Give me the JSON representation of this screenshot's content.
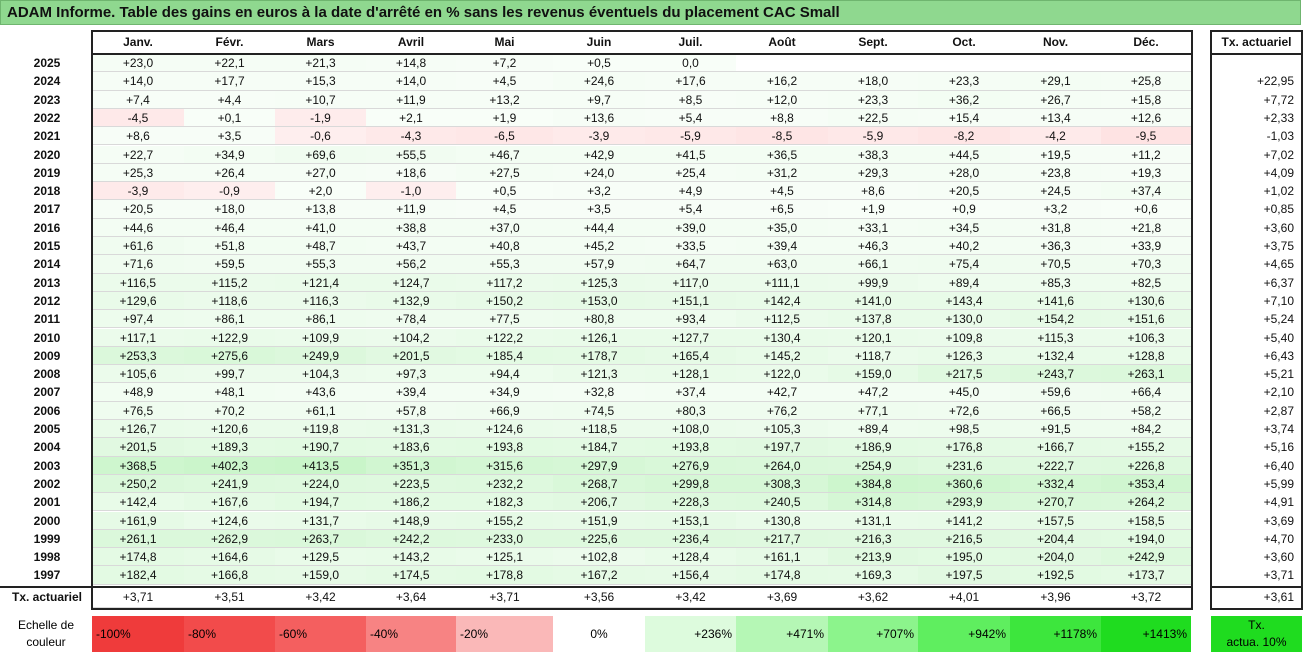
{
  "title": "ADAM Informe. Table des gains en euros à la date d'arrêté en % sans les revenus éventuels du placement CAC Small",
  "months": [
    "Janv.",
    "Févr.",
    "Mars",
    "Avril",
    "Mai",
    "Juin",
    "Juil.",
    "Août",
    "Sept.",
    "Oct.",
    "Nov.",
    "Déc."
  ],
  "tx_header": "Tx. actuariel",
  "rows": [
    {
      "year": "2025",
      "cells": [
        "+23,0",
        "+22,1",
        "+21,3",
        "+14,8",
        "+7,2",
        "+0,5",
        "0,0",
        "",
        "",
        "",
        "",
        ""
      ],
      "tx": ""
    },
    {
      "year": "2024",
      "cells": [
        "+14,0",
        "+17,7",
        "+15,3",
        "+14,0",
        "+4,5",
        "+24,6",
        "+17,6",
        "+16,2",
        "+18,0",
        "+23,3",
        "+29,1",
        "+25,8"
      ],
      "tx": "+22,95"
    },
    {
      "year": "2023",
      "cells": [
        "+7,4",
        "+4,4",
        "+10,7",
        "+11,9",
        "+13,2",
        "+9,7",
        "+8,5",
        "+12,0",
        "+23,3",
        "+36,2",
        "+26,7",
        "+15,8"
      ],
      "tx": "+7,72"
    },
    {
      "year": "2022",
      "cells": [
        "-4,5",
        "+0,1",
        "-1,9",
        "+2,1",
        "+1,9",
        "+13,6",
        "+5,4",
        "+8,8",
        "+22,5",
        "+15,4",
        "+13,4",
        "+12,6"
      ],
      "tx": "+2,33"
    },
    {
      "year": "2021",
      "cells": [
        "+8,6",
        "+3,5",
        "-0,6",
        "-4,3",
        "-6,5",
        "-3,9",
        "-5,9",
        "-8,5",
        "-5,9",
        "-8,2",
        "-4,2",
        "-9,5"
      ],
      "tx": "-1,03"
    },
    {
      "year": "2020",
      "cells": [
        "+22,7",
        "+34,9",
        "+69,6",
        "+55,5",
        "+46,7",
        "+42,9",
        "+41,5",
        "+36,5",
        "+38,3",
        "+44,5",
        "+19,5",
        "+11,2"
      ],
      "tx": "+7,02"
    },
    {
      "year": "2019",
      "cells": [
        "+25,3",
        "+26,4",
        "+27,0",
        "+18,6",
        "+27,5",
        "+24,0",
        "+25,4",
        "+31,2",
        "+29,3",
        "+28,0",
        "+23,8",
        "+19,3"
      ],
      "tx": "+4,09"
    },
    {
      "year": "2018",
      "cells": [
        "-3,9",
        "-0,9",
        "+2,0",
        "-1,0",
        "+0,5",
        "+3,2",
        "+4,9",
        "+4,5",
        "+8,6",
        "+20,5",
        "+24,5",
        "+37,4"
      ],
      "tx": "+1,02"
    },
    {
      "year": "2017",
      "cells": [
        "+20,5",
        "+18,0",
        "+13,8",
        "+11,9",
        "+4,5",
        "+3,5",
        "+5,4",
        "+6,5",
        "+1,9",
        "+0,9",
        "+3,2",
        "+0,6"
      ],
      "tx": "+0,85"
    },
    {
      "year": "2016",
      "cells": [
        "+44,6",
        "+46,4",
        "+41,0",
        "+38,8",
        "+37,0",
        "+44,4",
        "+39,0",
        "+35,0",
        "+33,1",
        "+34,5",
        "+31,8",
        "+21,8"
      ],
      "tx": "+3,60"
    },
    {
      "year": "2015",
      "cells": [
        "+61,6",
        "+51,8",
        "+48,7",
        "+43,7",
        "+40,8",
        "+45,2",
        "+33,5",
        "+39,4",
        "+46,3",
        "+40,2",
        "+36,3",
        "+33,9"
      ],
      "tx": "+3,75"
    },
    {
      "year": "2014",
      "cells": [
        "+71,6",
        "+59,5",
        "+55,3",
        "+56,2",
        "+55,3",
        "+57,9",
        "+64,7",
        "+63,0",
        "+66,1",
        "+75,4",
        "+70,5",
        "+70,3"
      ],
      "tx": "+4,65"
    },
    {
      "year": "2013",
      "cells": [
        "+116,5",
        "+115,2",
        "+121,4",
        "+124,7",
        "+117,2",
        "+125,3",
        "+117,0",
        "+111,1",
        "+99,9",
        "+89,4",
        "+85,3",
        "+82,5"
      ],
      "tx": "+6,37"
    },
    {
      "year": "2012",
      "cells": [
        "+129,6",
        "+118,6",
        "+116,3",
        "+132,9",
        "+150,2",
        "+153,0",
        "+151,1",
        "+142,4",
        "+141,0",
        "+143,4",
        "+141,6",
        "+130,6"
      ],
      "tx": "+7,10"
    },
    {
      "year": "2011",
      "cells": [
        "+97,4",
        "+86,1",
        "+86,1",
        "+78,4",
        "+77,5",
        "+80,8",
        "+93,4",
        "+112,5",
        "+137,8",
        "+130,0",
        "+154,2",
        "+151,6"
      ],
      "tx": "+5,24"
    },
    {
      "year": "2010",
      "cells": [
        "+117,1",
        "+122,9",
        "+109,9",
        "+104,2",
        "+122,2",
        "+126,1",
        "+127,7",
        "+130,4",
        "+120,1",
        "+109,8",
        "+115,3",
        "+106,3"
      ],
      "tx": "+5,40"
    },
    {
      "year": "2009",
      "cells": [
        "+253,3",
        "+275,6",
        "+249,9",
        "+201,5",
        "+185,4",
        "+178,7",
        "+165,4",
        "+145,2",
        "+118,7",
        "+126,3",
        "+132,4",
        "+128,8"
      ],
      "tx": "+6,43"
    },
    {
      "year": "2008",
      "cells": [
        "+105,6",
        "+99,7",
        "+104,3",
        "+97,3",
        "+94,4",
        "+121,3",
        "+128,1",
        "+122,0",
        "+159,0",
        "+217,5",
        "+243,7",
        "+263,1"
      ],
      "tx": "+5,21"
    },
    {
      "year": "2007",
      "cells": [
        "+48,9",
        "+48,1",
        "+43,6",
        "+39,4",
        "+34,9",
        "+32,8",
        "+37,4",
        "+42,7",
        "+47,2",
        "+45,0",
        "+59,6",
        "+66,4"
      ],
      "tx": "+2,10"
    },
    {
      "year": "2006",
      "cells": [
        "+76,5",
        "+70,2",
        "+61,1",
        "+57,8",
        "+66,9",
        "+74,5",
        "+80,3",
        "+76,2",
        "+77,1",
        "+72,6",
        "+66,5",
        "+58,2"
      ],
      "tx": "+2,87"
    },
    {
      "year": "2005",
      "cells": [
        "+126,7",
        "+120,6",
        "+119,8",
        "+131,3",
        "+124,6",
        "+118,5",
        "+108,0",
        "+105,3",
        "+89,4",
        "+98,5",
        "+91,5",
        "+84,2"
      ],
      "tx": "+3,74"
    },
    {
      "year": "2004",
      "cells": [
        "+201,5",
        "+189,3",
        "+190,7",
        "+183,6",
        "+193,8",
        "+184,7",
        "+193,8",
        "+197,7",
        "+186,9",
        "+176,8",
        "+166,7",
        "+155,2"
      ],
      "tx": "+5,16"
    },
    {
      "year": "2003",
      "cells": [
        "+368,5",
        "+402,3",
        "+413,5",
        "+351,3",
        "+315,6",
        "+297,9",
        "+276,9",
        "+264,0",
        "+254,9",
        "+231,6",
        "+222,7",
        "+226,8"
      ],
      "tx": "+6,40"
    },
    {
      "year": "2002",
      "cells": [
        "+250,2",
        "+241,9",
        "+224,0",
        "+223,5",
        "+232,2",
        "+268,7",
        "+299,8",
        "+308,3",
        "+384,8",
        "+360,6",
        "+332,4",
        "+353,4"
      ],
      "tx": "+5,99"
    },
    {
      "year": "2001",
      "cells": [
        "+142,4",
        "+167,6",
        "+194,7",
        "+186,2",
        "+182,3",
        "+206,7",
        "+228,3",
        "+240,5",
        "+314,8",
        "+293,9",
        "+270,7",
        "+264,2"
      ],
      "tx": "+4,91"
    },
    {
      "year": "2000",
      "cells": [
        "+161,9",
        "+124,6",
        "+131,7",
        "+148,9",
        "+155,2",
        "+151,9",
        "+153,1",
        "+130,8",
        "+131,1",
        "+141,2",
        "+157,5",
        "+158,5"
      ],
      "tx": "+3,69"
    },
    {
      "year": "1999",
      "cells": [
        "+261,1",
        "+262,9",
        "+263,7",
        "+242,2",
        "+233,0",
        "+225,6",
        "+236,4",
        "+217,7",
        "+216,3",
        "+216,5",
        "+204,4",
        "+194,0"
      ],
      "tx": "+4,70"
    },
    {
      "year": "1998",
      "cells": [
        "+174,8",
        "+164,6",
        "+129,5",
        "+143,2",
        "+125,1",
        "+102,8",
        "+128,4",
        "+161,1",
        "+213,9",
        "+195,0",
        "+204,0",
        "+242,9"
      ],
      "tx": "+3,60"
    },
    {
      "year": "1997",
      "cells": [
        "+182,4",
        "+166,8",
        "+159,0",
        "+174,5",
        "+178,8",
        "+167,2",
        "+156,4",
        "+174,8",
        "+169,3",
        "+197,5",
        "+192,5",
        "+173,7"
      ],
      "tx": "+3,71"
    }
  ],
  "footer": {
    "label": "Tx. actuariel",
    "cells": [
      "+3,71",
      "+3,51",
      "+3,42",
      "+3,64",
      "+3,71",
      "+3,56",
      "+3,42",
      "+3,69",
      "+3,62",
      "+4,01",
      "+3,96",
      "+3,72"
    ],
    "tx": "+3,61"
  },
  "scale": {
    "label_line1": "Echelle de",
    "label_line2": "couleur",
    "items": [
      {
        "text": "-100%",
        "color": "#ef3b3b",
        "align": "left"
      },
      {
        "text": "-80%",
        "color": "#f24b4b",
        "align": "left"
      },
      {
        "text": "-60%",
        "color": "#f45f5f",
        "align": "left"
      },
      {
        "text": "-40%",
        "color": "#f78383",
        "align": "left"
      },
      {
        "text": "-20%",
        "color": "#fab8b8",
        "align": "left"
      },
      {
        "text": "0%",
        "color": "#ffffff",
        "align": "center"
      },
      {
        "text": "+236%",
        "color": "#ddfbdd",
        "align": "right"
      },
      {
        "text": "+471%",
        "color": "#b5f7b5",
        "align": "right"
      },
      {
        "text": "+707%",
        "color": "#8cf48c",
        "align": "right"
      },
      {
        "text": "+942%",
        "color": "#5fee5f",
        "align": "right"
      },
      {
        "text": "+1178%",
        "color": "#3de63d",
        "align": "right"
      },
      {
        "text": "+1413%",
        "color": "#1fdc1f",
        "align": "right"
      }
    ],
    "tx_line1": "Tx.",
    "tx_line2": "actua. 10%",
    "tx_color": "#1fdc1f"
  }
}
